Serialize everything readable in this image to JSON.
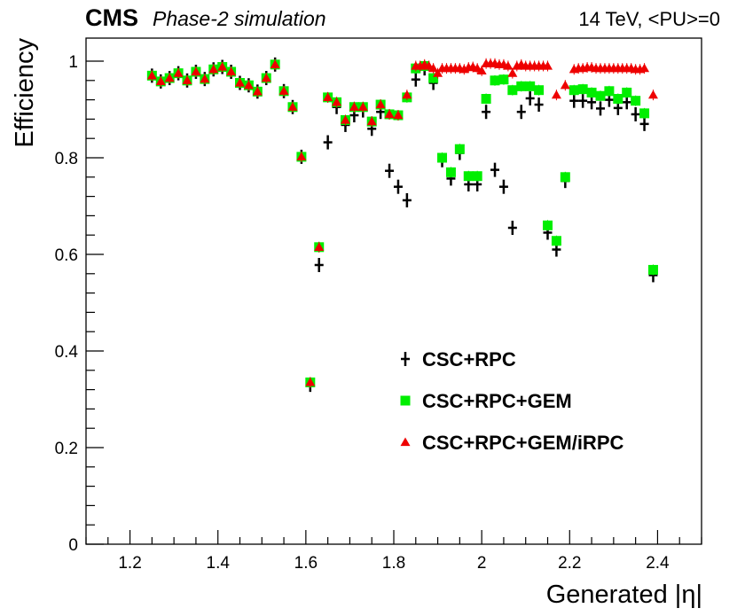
{
  "chart_data": {
    "type": "scatter",
    "title_bold": "CMS",
    "title_italic": "Phase-2 simulation",
    "energy_label": "14 TeV, <PU>=0",
    "xlabel": "Generated |η|",
    "ylabel": "Efficiency",
    "xlim": [
      1.1,
      2.5
    ],
    "ylim": [
      0,
      1.0
    ],
    "x_ticks": [
      {
        "value": 1.2,
        "label": "1.2"
      },
      {
        "value": 1.4,
        "label": "1.4"
      },
      {
        "value": 1.6,
        "label": "1.6"
      },
      {
        "value": 1.8,
        "label": "1.8"
      },
      {
        "value": 2.0,
        "label": "2"
      },
      {
        "value": 2.2,
        "label": "2.2"
      },
      {
        "value": 2.4,
        "label": "2.4"
      }
    ],
    "y_ticks": [
      {
        "value": 0,
        "label": "0"
      },
      {
        "value": 0.2,
        "label": "0.2"
      },
      {
        "value": 0.4,
        "label": "0.4"
      },
      {
        "value": 0.6,
        "label": "0.6"
      },
      {
        "value": 0.8,
        "label": "0.8"
      },
      {
        "value": 1.0,
        "label": "1"
      }
    ],
    "legend_position": "center-right",
    "series": [
      {
        "name": "CSC+RPC",
        "marker": "cross",
        "color": "#000000",
        "x": [
          1.25,
          1.27,
          1.29,
          1.31,
          1.33,
          1.35,
          1.37,
          1.39,
          1.41,
          1.43,
          1.45,
          1.47,
          1.49,
          1.51,
          1.53,
          1.55,
          1.57,
          1.59,
          1.61,
          1.63,
          1.65,
          1.67,
          1.69,
          1.71,
          1.73,
          1.75,
          1.77,
          1.79,
          1.81,
          1.83,
          1.85,
          1.87,
          1.89,
          1.91,
          1.93,
          1.95,
          1.97,
          1.99,
          2.01,
          2.03,
          2.05,
          2.07,
          2.09,
          2.11,
          2.13,
          2.15,
          2.17,
          2.19,
          2.21,
          2.23,
          2.25,
          2.27,
          2.29,
          2.31,
          2.33,
          2.35,
          2.37,
          2.39
        ],
        "values": [
          0.97,
          0.958,
          0.965,
          0.975,
          0.96,
          0.978,
          0.963,
          0.983,
          0.988,
          0.978,
          0.955,
          0.95,
          0.937,
          0.965,
          0.993,
          0.938,
          0.905,
          0.802,
          0.33,
          0.578,
          0.832,
          0.905,
          0.868,
          0.888,
          0.898,
          0.86,
          0.895,
          0.773,
          0.74,
          0.712,
          0.962,
          0.985,
          0.955,
          0.795,
          0.757,
          0.81,
          0.745,
          0.745,
          0.895,
          0.775,
          0.74,
          0.655,
          0.895,
          0.923,
          0.91,
          0.645,
          0.61,
          0.752,
          0.918,
          0.918,
          0.915,
          0.902,
          0.92,
          0.903,
          0.915,
          0.89,
          0.87,
          0.557
        ]
      },
      {
        "name": "CSC+RPC+GEM",
        "marker": "square",
        "color": "#00ee00",
        "x": [
          1.25,
          1.27,
          1.29,
          1.31,
          1.33,
          1.35,
          1.37,
          1.39,
          1.41,
          1.43,
          1.45,
          1.47,
          1.49,
          1.51,
          1.53,
          1.55,
          1.57,
          1.59,
          1.61,
          1.63,
          1.65,
          1.67,
          1.69,
          1.71,
          1.73,
          1.75,
          1.77,
          1.79,
          1.81,
          1.83,
          1.85,
          1.87,
          1.89,
          1.91,
          1.93,
          1.95,
          1.97,
          1.99,
          2.01,
          2.03,
          2.05,
          2.07,
          2.09,
          2.11,
          2.13,
          2.15,
          2.17,
          2.19,
          2.21,
          2.23,
          2.25,
          2.27,
          2.29,
          2.31,
          2.33,
          2.35,
          2.37,
          2.39
        ],
        "values": [
          0.97,
          0.958,
          0.965,
          0.975,
          0.96,
          0.978,
          0.963,
          0.983,
          0.988,
          0.978,
          0.955,
          0.95,
          0.937,
          0.965,
          0.993,
          0.938,
          0.905,
          0.802,
          0.335,
          0.615,
          0.925,
          0.915,
          0.878,
          0.905,
          0.905,
          0.875,
          0.91,
          0.89,
          0.888,
          0.925,
          0.985,
          0.99,
          0.965,
          0.8,
          0.77,
          0.818,
          0.762,
          0.762,
          0.922,
          0.96,
          0.962,
          0.94,
          0.948,
          0.948,
          0.94,
          0.66,
          0.628,
          0.76,
          0.94,
          0.942,
          0.935,
          0.928,
          0.938,
          0.922,
          0.935,
          0.918,
          0.892,
          0.568
        ]
      },
      {
        "name": "CSC+RPC+GEM/iRPC",
        "marker": "triangle",
        "color": "#ee0000",
        "x": [
          1.25,
          1.27,
          1.29,
          1.31,
          1.33,
          1.35,
          1.37,
          1.39,
          1.41,
          1.43,
          1.45,
          1.47,
          1.49,
          1.51,
          1.53,
          1.55,
          1.57,
          1.59,
          1.61,
          1.63,
          1.65,
          1.67,
          1.69,
          1.71,
          1.73,
          1.75,
          1.77,
          1.79,
          1.81,
          1.83,
          1.85,
          1.86,
          1.87,
          1.88,
          1.89,
          1.9,
          1.91,
          1.92,
          1.93,
          1.94,
          1.95,
          1.96,
          1.97,
          1.98,
          1.99,
          2.0,
          2.01,
          2.02,
          2.03,
          2.04,
          2.05,
          2.06,
          2.07,
          2.08,
          2.09,
          2.1,
          2.11,
          2.12,
          2.13,
          2.14,
          2.15,
          2.17,
          2.19,
          2.21,
          2.22,
          2.23,
          2.24,
          2.25,
          2.26,
          2.27,
          2.28,
          2.29,
          2.3,
          2.31,
          2.32,
          2.33,
          2.34,
          2.35,
          2.36,
          2.37,
          2.39
        ],
        "values": [
          0.97,
          0.958,
          0.965,
          0.975,
          0.96,
          0.978,
          0.963,
          0.983,
          0.988,
          0.978,
          0.955,
          0.95,
          0.937,
          0.965,
          0.993,
          0.938,
          0.905,
          0.802,
          0.335,
          0.615,
          0.925,
          0.915,
          0.878,
          0.905,
          0.905,
          0.875,
          0.91,
          0.89,
          0.888,
          0.93,
          0.99,
          0.99,
          0.993,
          0.99,
          0.985,
          0.975,
          0.985,
          0.985,
          0.985,
          0.985,
          0.985,
          0.983,
          0.987,
          0.988,
          0.985,
          0.98,
          0.995,
          0.995,
          0.995,
          0.993,
          0.993,
          0.99,
          0.975,
          0.99,
          0.993,
          0.99,
          0.99,
          0.99,
          0.99,
          0.99,
          0.99,
          0.93,
          0.95,
          0.983,
          0.985,
          0.985,
          0.987,
          0.987,
          0.985,
          0.985,
          0.985,
          0.985,
          0.985,
          0.985,
          0.985,
          0.985,
          0.985,
          0.983,
          0.983,
          0.985,
          0.93
        ]
      }
    ]
  }
}
